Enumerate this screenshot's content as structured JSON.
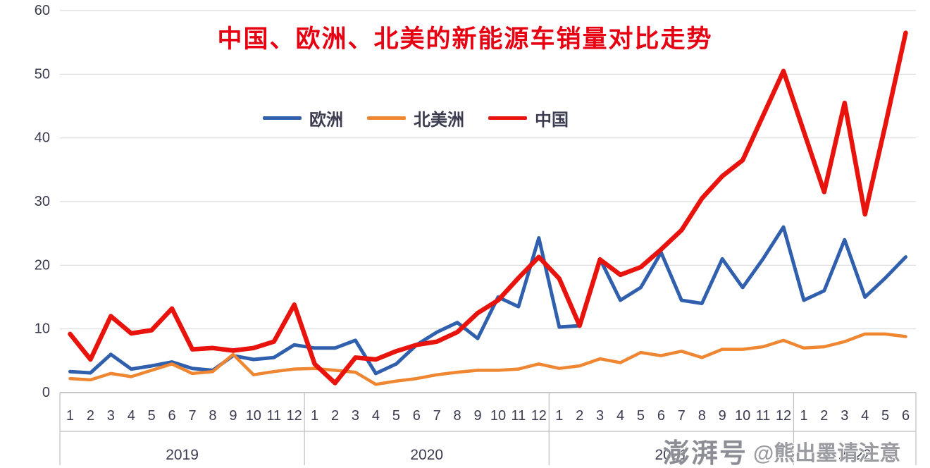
{
  "chart_data": {
    "type": "line",
    "title": "中国、欧洲、北美的新能源车销量对比走势",
    "title_color": "#e60012",
    "ylim": [
      0,
      60
    ],
    "yticks": [
      0,
      10,
      20,
      30,
      40,
      50,
      60
    ],
    "grid": "horizontal",
    "legend_position": "top-center",
    "x_years": [
      {
        "label": "2019",
        "months": [
          "1",
          "2",
          "3",
          "4",
          "5",
          "6",
          "7",
          "8",
          "9",
          "10",
          "11",
          "12"
        ]
      },
      {
        "label": "2020",
        "months": [
          "1",
          "2",
          "3",
          "4",
          "5",
          "6",
          "7",
          "8",
          "9",
          "10",
          "11",
          "12"
        ]
      },
      {
        "label": "2021",
        "months": [
          "1",
          "2",
          "3",
          "4",
          "5",
          "6",
          "7",
          "8",
          "9",
          "10",
          "11",
          "12"
        ]
      },
      {
        "label": "2022",
        "months": [
          "1",
          "2",
          "3",
          "4",
          "5",
          "6"
        ]
      }
    ],
    "series": [
      {
        "key": "europe",
        "name": "欧洲",
        "color": "#2f5fad",
        "values": [
          3.3,
          3.1,
          6,
          3.7,
          4.2,
          4.8,
          3.8,
          3.5,
          5.8,
          5.2,
          5.5,
          7.5,
          7,
          7,
          8.2,
          3,
          4.5,
          7.5,
          9.5,
          11,
          8.5,
          15,
          13.5,
          24.3,
          10.3,
          10.5,
          21,
          14.5,
          16.5,
          22,
          14.5,
          14,
          21,
          16.5,
          21,
          26,
          14.5,
          16,
          24,
          15,
          18,
          21.3
        ]
      },
      {
        "key": "north-america",
        "name": "北美洲",
        "color": "#ef8632",
        "values": [
          2.2,
          2,
          3,
          2.5,
          3.5,
          4.5,
          3,
          3.3,
          6,
          2.8,
          3.3,
          3.7,
          3.8,
          3.5,
          3.2,
          1.3,
          1.8,
          2.2,
          2.8,
          3.2,
          3.5,
          3.5,
          3.7,
          4.5,
          3.8,
          4.2,
          5.3,
          4.7,
          6.3,
          5.8,
          6.5,
          5.5,
          6.8,
          6.8,
          7.2,
          8.2,
          7,
          7.2,
          8,
          9.2,
          9.2,
          8.8
        ]
      },
      {
        "key": "china",
        "name": "中国",
        "color": "#e8130c",
        "values": [
          9.2,
          5.2,
          12,
          9.3,
          9.8,
          13.2,
          6.8,
          7,
          6.6,
          7,
          8,
          13.8,
          4.5,
          1.5,
          5.5,
          5.2,
          6.5,
          7.5,
          8,
          9.5,
          12.5,
          14.5,
          18,
          21.3,
          17.9,
          10.5,
          20.9,
          18.5,
          19.7,
          22.5,
          25.5,
          30.5,
          34,
          36.5,
          43.5,
          50.5,
          41,
          31.5,
          45.5,
          28,
          42,
          56.5
        ]
      }
    ]
  },
  "watermark": {
    "logo": "澎湃号",
    "text": "@熊出墨请注意"
  }
}
